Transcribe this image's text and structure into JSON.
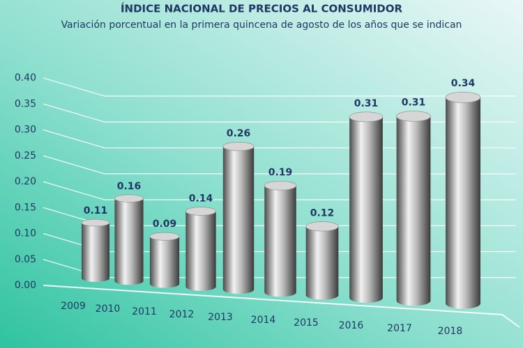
{
  "chart_data": {
    "type": "bar",
    "title": "ÍNDICE NACIONAL DE PRECIOS AL CONSUMIDOR",
    "subtitle": "Variación porcentual en la primera quincena de agosto de los años que se indican",
    "categories": [
      "2009",
      "2010",
      "2011",
      "2012",
      "2013",
      "2014",
      "2015",
      "2016",
      "2017",
      "2018"
    ],
    "values": [
      0.11,
      0.16,
      0.09,
      0.14,
      0.26,
      0.19,
      0.12,
      0.31,
      0.31,
      0.34
    ],
    "color": "#9a9a9a",
    "ylim": [
      0,
      0.4
    ],
    "yticks": [
      {
        "value": 0,
        "label": "0.00"
      },
      {
        "value": 0.05,
        "label": "0.05"
      },
      {
        "value": 0.1,
        "label": "0.10"
      },
      {
        "value": 0.15,
        "label": "0.15"
      },
      {
        "value": 0.2,
        "label": "0.20"
      },
      {
        "value": 0.25,
        "label": "0.25"
      },
      {
        "value": 0.3,
        "label": "0.30"
      },
      {
        "value": 0.35,
        "label": "0.35"
      },
      {
        "value": 0.4,
        "label": "0.40"
      }
    ],
    "grid": true
  }
}
